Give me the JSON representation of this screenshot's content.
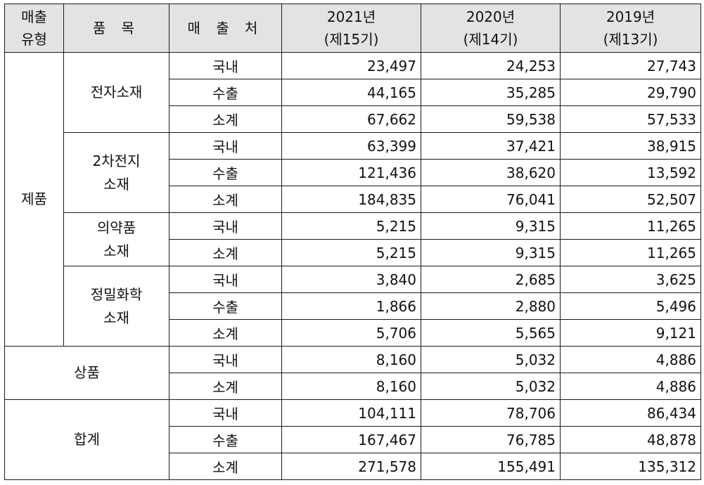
{
  "header": {
    "sales_type": "매출\n유형",
    "item": "품 목",
    "destination": "매 출 처",
    "years": [
      {
        "year": "2021년",
        "period": "(제15기)"
      },
      {
        "year": "2020년",
        "period": "(제14기)"
      },
      {
        "year": "2019년",
        "period": "(제13기)"
      }
    ]
  },
  "labels": {
    "product": "제품",
    "goods": "상품",
    "total": "합계",
    "electronic": "전자소재",
    "battery": "2차전지\n소재",
    "pharma": "의약품\n소재",
    "fine_chem": "정밀화학\n소재"
  },
  "rows": [
    {
      "dest": "국내",
      "v": [
        "23,497",
        "24,253",
        "27,743"
      ]
    },
    {
      "dest": "수출",
      "v": [
        "44,165",
        "35,285",
        "29,790"
      ]
    },
    {
      "dest": "소계",
      "v": [
        "67,662",
        "59,538",
        "57,533"
      ]
    },
    {
      "dest": "국내",
      "v": [
        "63,399",
        "37,421",
        "38,915"
      ]
    },
    {
      "dest": "수출",
      "v": [
        "121,436",
        "38,620",
        "13,592"
      ]
    },
    {
      "dest": "소계",
      "v": [
        "184,835",
        "76,041",
        "52,507"
      ]
    },
    {
      "dest": "국내",
      "v": [
        "5,215",
        "9,315",
        "11,265"
      ]
    },
    {
      "dest": "소계",
      "v": [
        "5,215",
        "9,315",
        "11,265"
      ]
    },
    {
      "dest": "국내",
      "v": [
        "3,840",
        "2,685",
        "3,625"
      ]
    },
    {
      "dest": "수출",
      "v": [
        "1,866",
        "2,880",
        "5,496"
      ]
    },
    {
      "dest": "소계",
      "v": [
        "5,706",
        "5,565",
        "9,121"
      ]
    },
    {
      "dest": "국내",
      "v": [
        "8,160",
        "5,032",
        "4,886"
      ]
    },
    {
      "dest": "소계",
      "v": [
        "8,160",
        "5,032",
        "4,886"
      ]
    },
    {
      "dest": "국내",
      "v": [
        "104,111",
        "78,706",
        "86,434"
      ]
    },
    {
      "dest": "수출",
      "v": [
        "167,467",
        "76,785",
        "48,878"
      ]
    },
    {
      "dest": "소계",
      "v": [
        "271,578",
        "155,491",
        "135,312"
      ]
    }
  ]
}
